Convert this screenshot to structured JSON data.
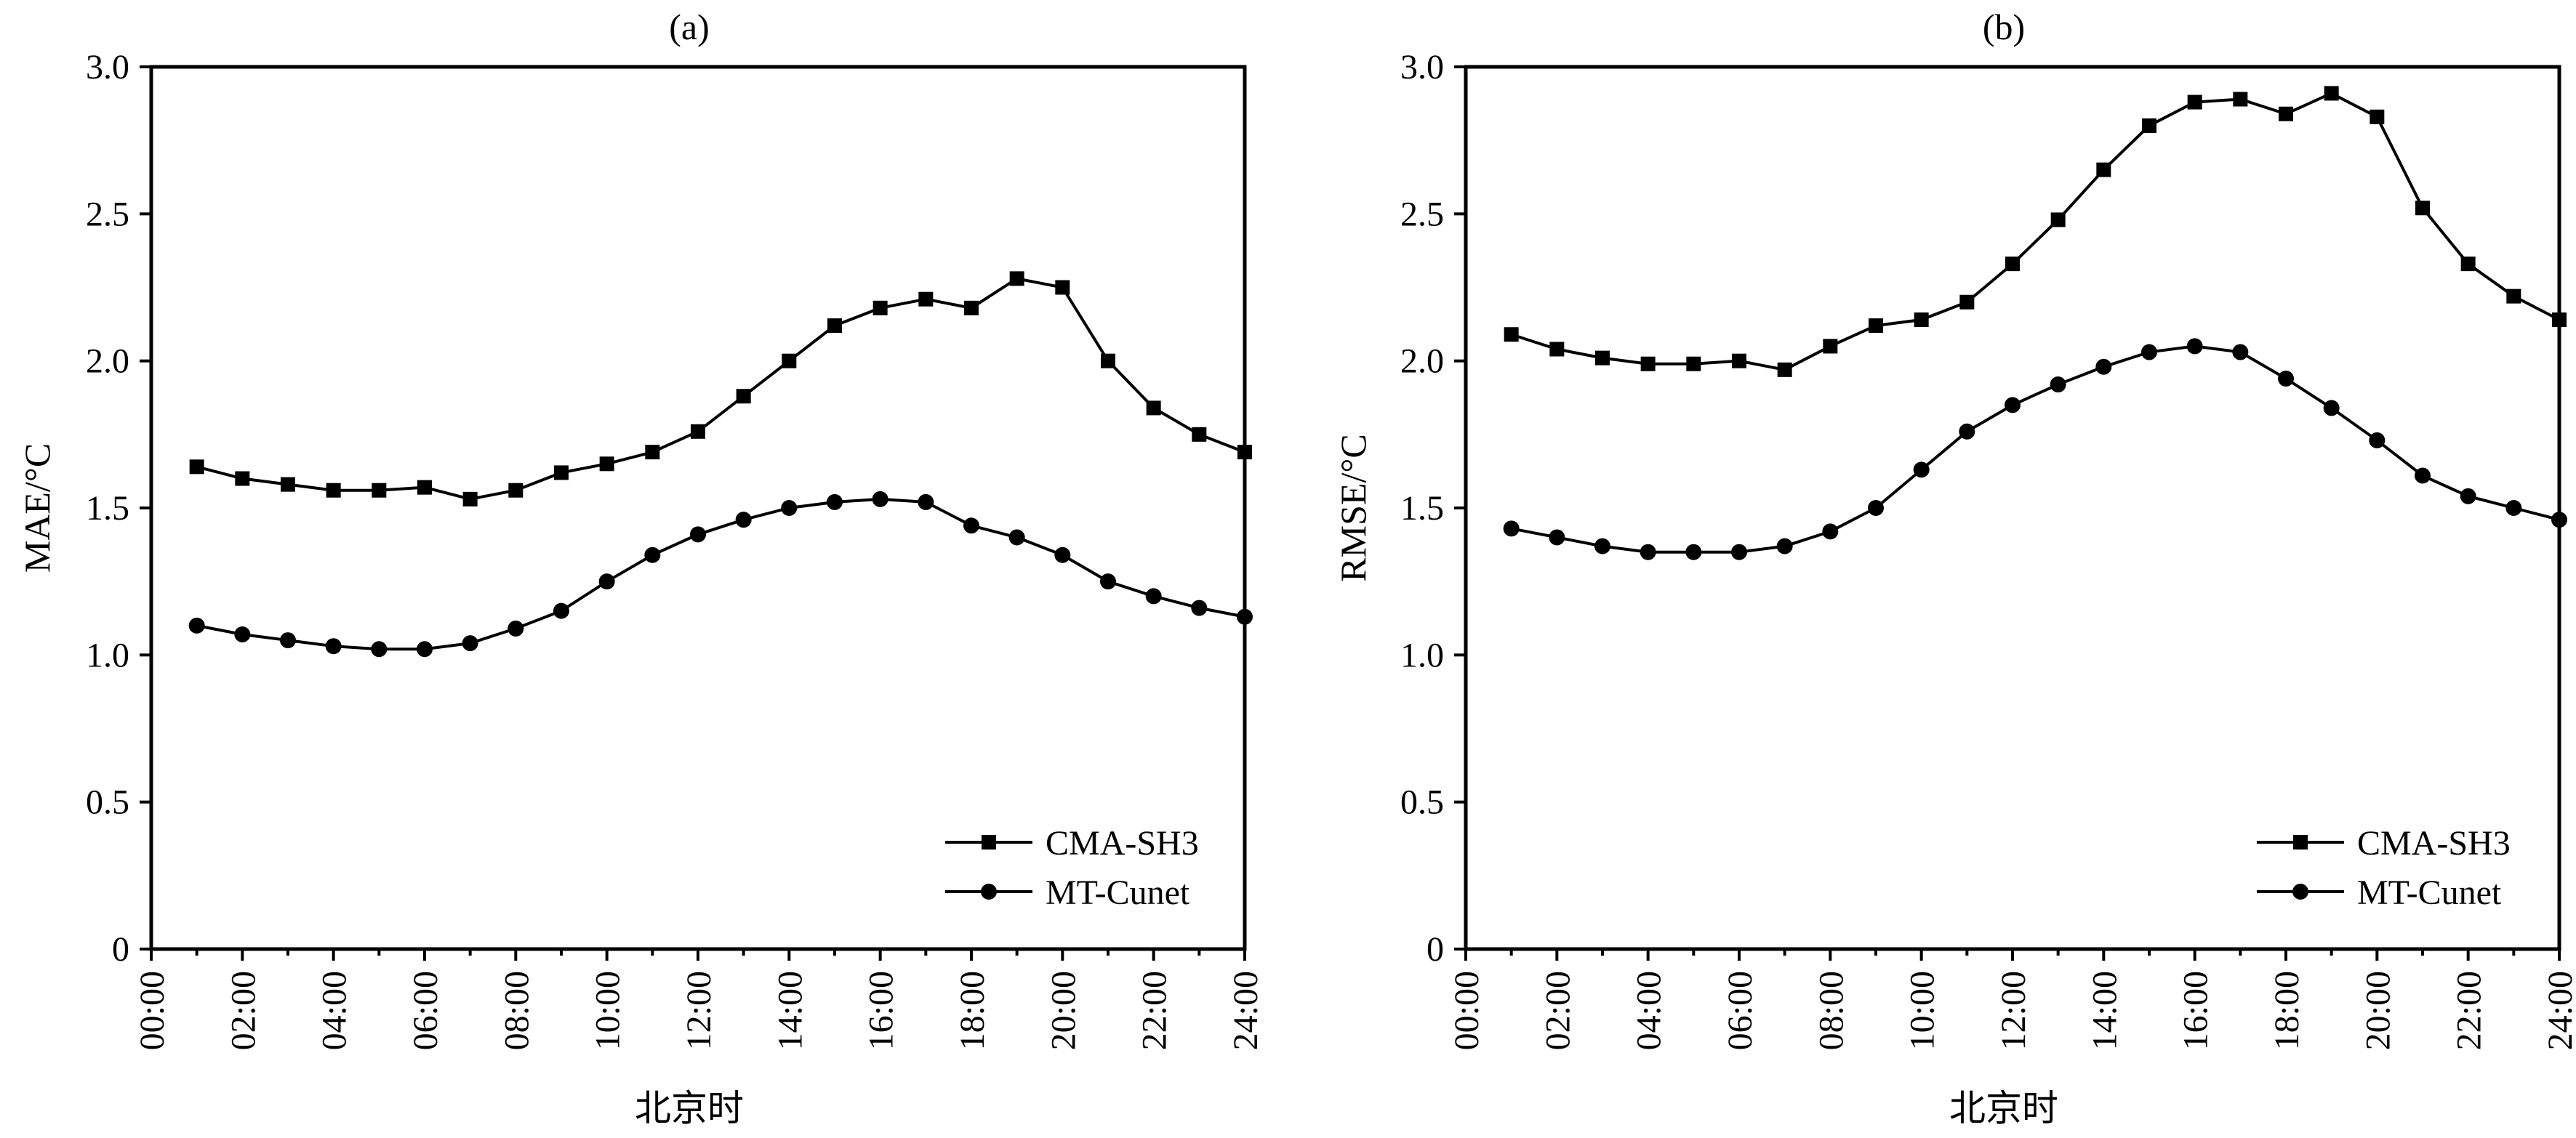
{
  "chart_data": [
    {
      "type": "line",
      "panel_label": "(a)",
      "xlabel": "北京时",
      "ylabel": "MAE/°C",
      "ylim": [
        0,
        3.0
      ],
      "yticks": [
        "0",
        "0.5",
        "1.0",
        "1.5",
        "2.0",
        "2.5",
        "3.0"
      ],
      "xlim": [
        0,
        24
      ],
      "xticks": [
        "00:00",
        "02:00",
        "04:00",
        "06:00",
        "08:00",
        "10:00",
        "12:00",
        "14:00",
        "16:00",
        "18:00",
        "20:00",
        "22:00",
        "24:00"
      ],
      "x": [
        1,
        2,
        3,
        4,
        5,
        6,
        7,
        8,
        9,
        10,
        11,
        12,
        13,
        14,
        15,
        16,
        17,
        18,
        19,
        20,
        21,
        22,
        23,
        24
      ],
      "series": [
        {
          "name": "CMA-SH3",
          "marker": "square",
          "values": [
            1.64,
            1.6,
            1.58,
            1.56,
            1.56,
            1.57,
            1.53,
            1.56,
            1.62,
            1.65,
            1.69,
            1.76,
            1.88,
            2.0,
            2.12,
            2.18,
            2.21,
            2.18,
            2.28,
            2.25,
            2.0,
            1.84,
            1.75,
            1.69
          ]
        },
        {
          "name": "MT-Cunet",
          "marker": "circle",
          "values": [
            1.1,
            1.07,
            1.05,
            1.03,
            1.02,
            1.02,
            1.04,
            1.09,
            1.15,
            1.25,
            1.34,
            1.41,
            1.46,
            1.5,
            1.52,
            1.53,
            1.52,
            1.44,
            1.4,
            1.34,
            1.25,
            1.2,
            1.16,
            1.13
          ]
        }
      ],
      "legend": "bottom-right"
    },
    {
      "type": "line",
      "panel_label": "(b)",
      "xlabel": "北京时",
      "ylabel": "RMSE/°C",
      "ylim": [
        0,
        3.0
      ],
      "yticks": [
        "0",
        "0.5",
        "1.0",
        "1.5",
        "2.0",
        "2.5",
        "3.0"
      ],
      "xlim": [
        0,
        24
      ],
      "xticks": [
        "00:00",
        "02:00",
        "04:00",
        "06:00",
        "08:00",
        "10:00",
        "12:00",
        "14:00",
        "16:00",
        "18:00",
        "20:00",
        "22:00",
        "24:00"
      ],
      "x": [
        1,
        2,
        3,
        4,
        5,
        6,
        7,
        8,
        9,
        10,
        11,
        12,
        13,
        14,
        15,
        16,
        17,
        18,
        19,
        20,
        21,
        22,
        23,
        24
      ],
      "series": [
        {
          "name": "CMA-SH3",
          "marker": "square",
          "values": [
            2.09,
            2.04,
            2.01,
            1.99,
            1.99,
            2.0,
            1.97,
            2.05,
            2.12,
            2.14,
            2.2,
            2.33,
            2.48,
            2.65,
            2.8,
            2.88,
            2.89,
            2.84,
            2.91,
            2.83,
            2.52,
            2.33,
            2.22,
            2.14
          ]
        },
        {
          "name": "MT-Cunet",
          "marker": "circle",
          "values": [
            1.43,
            1.4,
            1.37,
            1.35,
            1.35,
            1.35,
            1.37,
            1.42,
            1.5,
            1.63,
            1.76,
            1.85,
            1.92,
            1.98,
            2.03,
            2.05,
            2.03,
            1.94,
            1.84,
            1.73,
            1.61,
            1.54,
            1.5,
            1.46
          ]
        }
      ],
      "legend": "bottom-right"
    }
  ]
}
